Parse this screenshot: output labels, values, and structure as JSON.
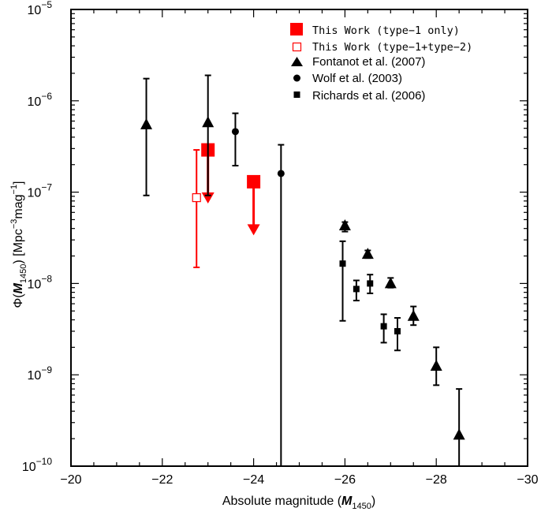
{
  "chart_data": {
    "type": "scatter",
    "title": "",
    "x_reversed": true,
    "y_scale": "log",
    "xlim": [
      -20,
      -30
    ],
    "ylim": [
      1e-10,
      1e-05
    ],
    "xticks": [
      -20,
      -22,
      -24,
      -26,
      -28,
      -30
    ],
    "xtick_labels": [
      "−20",
      "−22",
      "−24",
      "−26",
      "−28",
      "−30"
    ],
    "yticks": [
      1e-10,
      1e-09,
      1e-08,
      1e-07,
      1e-06,
      1e-05
    ],
    "ytick_mantissa": "10",
    "ytick_exponents": [
      "−10",
      "−9",
      "−8",
      "−7",
      "−6",
      "−5"
    ],
    "xlabel_prefix": "Absolute magnitude (",
    "xlabel_var": "M",
    "xlabel_sub": "1450",
    "xlabel_suffix": ")",
    "ylabel_prefix": "Φ(",
    "ylabel_var": "M",
    "ylabel_sub": "1450",
    "ylabel_unit_open": ") [Mpc",
    "ylabel_sup1": "−3",
    "ylabel_mid": "mag",
    "ylabel_sup2": "−1",
    "ylabel_close": "]",
    "legend_position": "top-right",
    "series": [
      {
        "name": "This Work (type−1 only)",
        "marker": "filled-square",
        "color": "#ff0000",
        "points": [
          {
            "x": -23.0,
            "y": 2.9e-07,
            "upper_limit": true
          },
          {
            "x": -24.0,
            "y": 1.3e-07,
            "upper_limit": true
          }
        ]
      },
      {
        "name": "This Work (type−1+type−2)",
        "marker": "open-square",
        "color": "#ff0000",
        "points": [
          {
            "x": -22.75,
            "y": 8.7e-08,
            "ylo": 1.5e-08,
            "yhi": 2.9e-07
          }
        ]
      },
      {
        "name": "Fontanot et al. (2007)",
        "marker": "triangle",
        "color": "#000000",
        "points": [
          {
            "x": -21.65,
            "y": 5.5e-07,
            "ylo": 9.2e-08,
            "yhi": 1.75e-06
          },
          {
            "x": -23.0,
            "y": 5.8e-07,
            "ylo": 9.2e-08,
            "yhi": 1.9e-06
          },
          {
            "x": -26.0,
            "y": 4.3e-08,
            "ylo": 3.7e-08,
            "yhi": 4.7e-08
          },
          {
            "x": -26.5,
            "y": 2.1e-08,
            "ylo": 1.9e-08,
            "yhi": 2.3e-08
          },
          {
            "x": -27.0,
            "y": 1e-08,
            "ylo": 9e-09,
            "yhi": 1.15e-08
          },
          {
            "x": -27.5,
            "y": 4.4e-09,
            "ylo": 3.5e-09,
            "yhi": 5.6e-09
          },
          {
            "x": -28.0,
            "y": 1.25e-09,
            "ylo": 7.7e-10,
            "yhi": 2e-09
          },
          {
            "x": -28.5,
            "y": 2.2e-10,
            "ylo": 1e-10,
            "yhi": 7e-10
          }
        ]
      },
      {
        "name": "Wolf et al. (2003)",
        "marker": "circle",
        "color": "#000000",
        "points": [
          {
            "x": -23.6,
            "y": 4.6e-07,
            "ylo": 1.95e-07,
            "yhi": 7.3e-07
          },
          {
            "x": -24.6,
            "y": 1.6e-07,
            "ylo": 1e-10,
            "yhi": 3.3e-07
          }
        ]
      },
      {
        "name": "Richards et al. (2006)",
        "marker": "small-square",
        "color": "#000000",
        "points": [
          {
            "x": -25.95,
            "y": 1.65e-08,
            "ylo": 3.9e-09,
            "yhi": 2.9e-08
          },
          {
            "x": -26.25,
            "y": 8.7e-09,
            "ylo": 6.5e-09,
            "yhi": 1.08e-08
          },
          {
            "x": -26.55,
            "y": 1e-08,
            "ylo": 7.8e-09,
            "yhi": 1.25e-08
          },
          {
            "x": -26.85,
            "y": 3.4e-09,
            "ylo": 2.25e-09,
            "yhi": 4.6e-09
          },
          {
            "x": -27.15,
            "y": 3e-09,
            "ylo": 1.85e-09,
            "yhi": 4.2e-09
          }
        ]
      }
    ]
  }
}
